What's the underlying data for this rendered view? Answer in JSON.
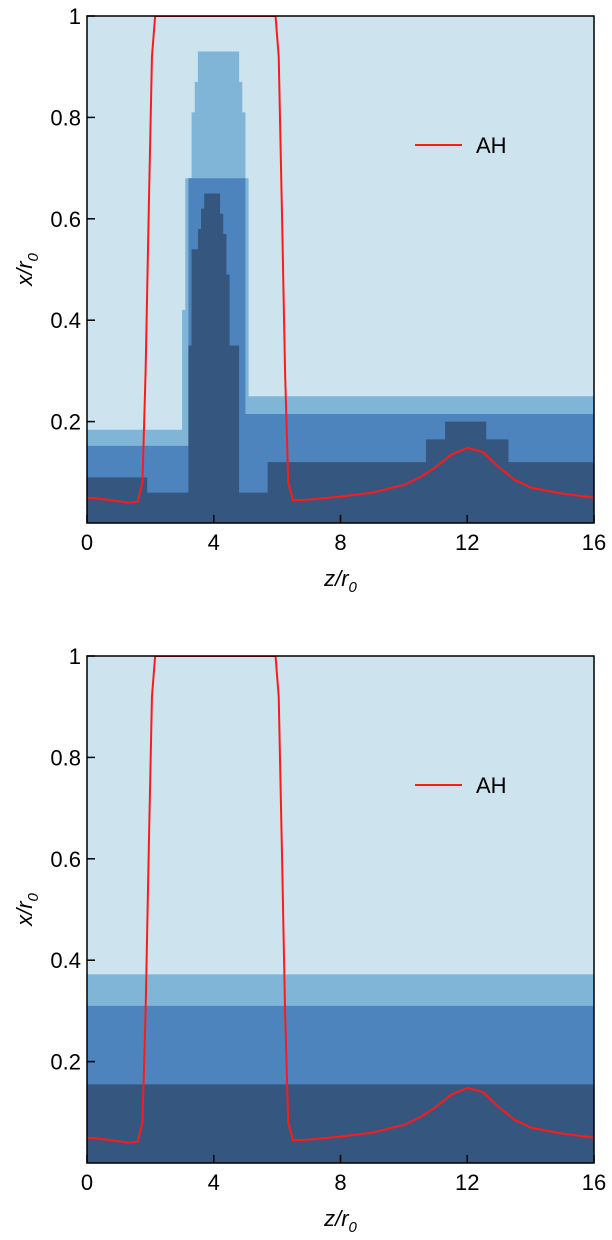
{
  "colors": {
    "level0": "#cde3ee",
    "level1": "#80b5d8",
    "level2": "#4e84bd",
    "level3": "#35567e",
    "ah_curve": "#ff1a1a",
    "frame": "#000000"
  },
  "chart_data": [
    {
      "type": "area",
      "title": "",
      "xlabel": "z/r",
      "xlabel_sub": "0",
      "ylabel": "x/r",
      "ylabel_sub": "0",
      "xlim": [
        0,
        16
      ],
      "ylim": [
        0,
        1
      ],
      "x_ticks": [
        0,
        4,
        8,
        12,
        16
      ],
      "x_tick_labels": [
        "0",
        "4",
        "8",
        "12",
        "16"
      ],
      "y_ticks": [
        0.2,
        0.4,
        0.6,
        0.8,
        1.0
      ],
      "y_tick_labels": [
        "0.2",
        "0.4",
        "0.6",
        "0.8",
        "1"
      ],
      "legend": {
        "position": "top-right",
        "entries": [
          {
            "label": "AH",
            "color": "#ff1a1a"
          }
        ]
      },
      "refinement_levels": [
        {
          "level": 1,
          "color": "#80b5d8",
          "steps": [
            [
              0,
              0.184
            ],
            [
              2.7,
              0.184
            ],
            [
              3.0,
              0.184
            ],
            [
              2.7,
              0.184
            ],
            [
              3.0,
              0.42
            ],
            [
              3.1,
              0.68
            ],
            [
              3.3,
              0.81
            ],
            [
              3.4,
              0.87
            ],
            [
              3.5,
              0.93
            ],
            [
              4.8,
              0.87
            ],
            [
              4.9,
              0.81
            ],
            [
              5.0,
              0.68
            ],
            [
              5.1,
              0.42
            ],
            [
              5.1,
              0.25
            ],
            [
              16,
              0.25
            ]
          ]
        },
        {
          "level": 2,
          "color": "#4e84bd",
          "steps": [
            [
              0,
              0.152
            ],
            [
              3.0,
              0.152
            ],
            [
              3.0,
              0.152
            ],
            [
              3.2,
              0.68
            ],
            [
              5.0,
              0.68
            ],
            [
              5.0,
              0.215
            ],
            [
              16,
              0.215
            ]
          ]
        },
        {
          "level": 3,
          "color": "#35567e",
          "steps": [
            [
              0,
              0.09
            ],
            [
              1.9,
              0.09
            ],
            [
              1.9,
              0.06
            ],
            [
              3.2,
              0.06
            ],
            [
              3.2,
              0.35
            ],
            [
              3.3,
              0.54
            ],
            [
              3.5,
              0.58
            ],
            [
              3.6,
              0.62
            ],
            [
              3.7,
              0.65
            ],
            [
              4.1,
              0.65
            ],
            [
              4.2,
              0.61
            ],
            [
              4.3,
              0.57
            ],
            [
              4.4,
              0.49
            ],
            [
              4.5,
              0.41
            ],
            [
              4.5,
              0.35
            ],
            [
              4.8,
              0.35
            ],
            [
              4.8,
              0.06
            ],
            [
              5.7,
              0.06
            ],
            [
              5.7,
              0.12
            ],
            [
              10.7,
              0.12
            ],
            [
              10.7,
              0.165
            ],
            [
              11.3,
              0.165
            ],
            [
              11.3,
              0.2
            ],
            [
              12.6,
              0.2
            ],
            [
              12.6,
              0.165
            ],
            [
              13.3,
              0.165
            ],
            [
              13.3,
              0.12
            ],
            [
              16,
              0.12
            ]
          ]
        }
      ],
      "series": [
        {
          "name": "AH",
          "x": [
            0,
            0.5,
            1.0,
            1.3,
            1.6,
            1.75,
            1.85,
            1.95,
            2.05,
            2.15,
            5.95,
            6.05,
            6.15,
            6.25,
            6.35,
            6.5,
            7,
            8,
            9,
            10,
            10.5,
            11,
            11.5,
            12,
            12.5,
            13,
            13.5,
            14,
            15,
            16
          ],
          "y": [
            0.05,
            0.047,
            0.043,
            0.04,
            0.042,
            0.08,
            0.3,
            0.62,
            0.92,
            1.0,
            1.0,
            0.92,
            0.62,
            0.3,
            0.08,
            0.045,
            0.046,
            0.052,
            0.06,
            0.075,
            0.09,
            0.11,
            0.135,
            0.148,
            0.14,
            0.11,
            0.085,
            0.07,
            0.058,
            0.05
          ]
        }
      ]
    },
    {
      "type": "area",
      "title": "",
      "xlabel": "z/r",
      "xlabel_sub": "0",
      "ylabel": "x/r",
      "ylabel_sub": "0",
      "xlim": [
        0,
        16
      ],
      "ylim": [
        0,
        1
      ],
      "x_ticks": [
        0,
        4,
        8,
        12,
        16
      ],
      "x_tick_labels": [
        "0",
        "4",
        "8",
        "12",
        "16"
      ],
      "y_ticks": [
        0.2,
        0.4,
        0.6,
        0.8,
        1.0
      ],
      "y_tick_labels": [
        "0.2",
        "0.4",
        "0.6",
        "0.8",
        "1"
      ],
      "legend": {
        "position": "top-right",
        "entries": [
          {
            "label": "AH",
            "color": "#ff1a1a"
          }
        ]
      },
      "refinement_levels": [
        {
          "level": 1,
          "color": "#80b5d8",
          "steps": [
            [
              0,
              0.372
            ],
            [
              16,
              0.372
            ]
          ]
        },
        {
          "level": 2,
          "color": "#4e84bd",
          "steps": [
            [
              0,
              0.31
            ],
            [
              16,
              0.31
            ]
          ]
        },
        {
          "level": 3,
          "color": "#35567e",
          "steps": [
            [
              0,
              0.155
            ],
            [
              16,
              0.155
            ]
          ]
        }
      ],
      "series": [
        {
          "name": "AH",
          "x": [
            0,
            0.5,
            1.0,
            1.3,
            1.6,
            1.75,
            1.85,
            1.95,
            2.05,
            2.15,
            5.95,
            6.05,
            6.15,
            6.25,
            6.35,
            6.5,
            7,
            8,
            9,
            10,
            10.5,
            11,
            11.5,
            12,
            12.5,
            13,
            13.5,
            14,
            15,
            16
          ],
          "y": [
            0.05,
            0.047,
            0.043,
            0.04,
            0.042,
            0.08,
            0.3,
            0.62,
            0.92,
            1.0,
            1.0,
            0.92,
            0.62,
            0.3,
            0.08,
            0.045,
            0.046,
            0.052,
            0.06,
            0.075,
            0.09,
            0.11,
            0.135,
            0.148,
            0.14,
            0.11,
            0.085,
            0.07,
            0.058,
            0.05
          ]
        }
      ]
    }
  ]
}
